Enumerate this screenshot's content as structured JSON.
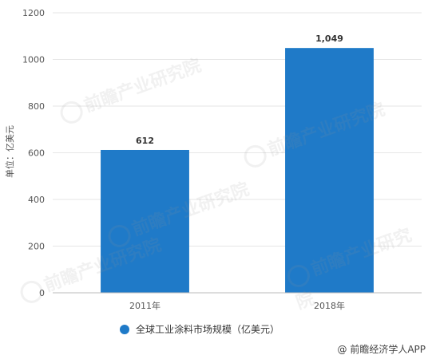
{
  "chart_data": {
    "type": "bar",
    "categories": [
      "2011年",
      "2018年"
    ],
    "series": [
      {
        "name": "全球工业涂料市场规模（亿美元）",
        "values": [
          612,
          1049
        ]
      }
    ],
    "data_labels": [
      "612",
      "1,049"
    ],
    "ylabel": "单位：亿美元",
    "ylim": [
      0,
      1200
    ],
    "yticks": [
      0,
      200,
      400,
      600,
      800,
      1000,
      1200
    ],
    "grid": true,
    "legend_position": "bottom",
    "bar_color": "#1f7ac8"
  },
  "legend": {
    "label": "全球工业涂料市场规模（亿美元）"
  },
  "source": {
    "text": "@ 前瞻经济学人APP"
  },
  "watermark": {
    "text": "前瞻产业研究院"
  }
}
